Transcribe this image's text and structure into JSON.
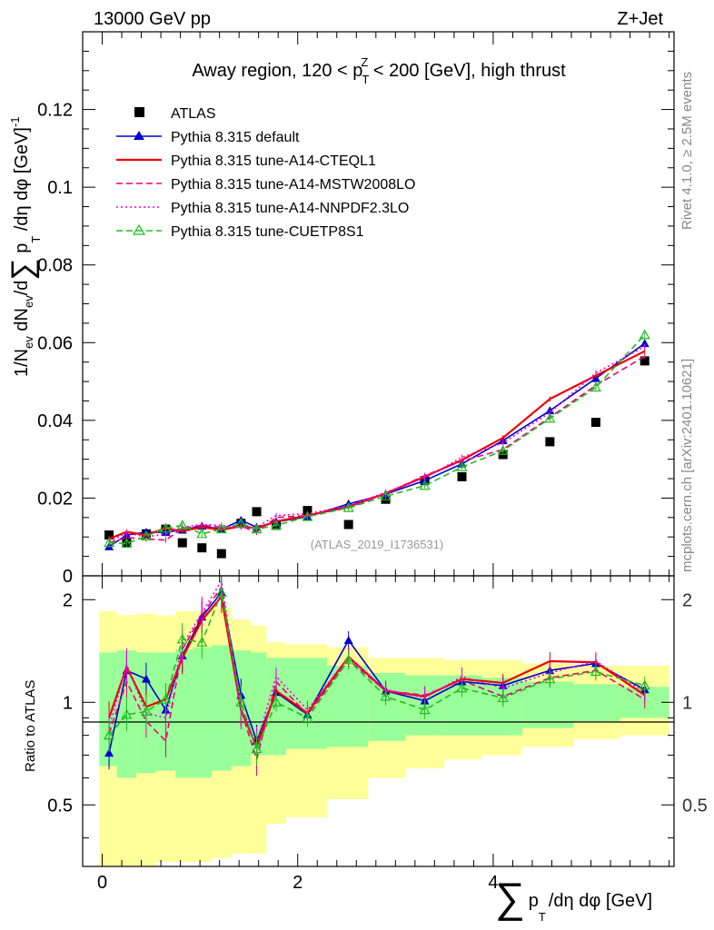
{
  "header": {
    "energy_label": "13000 GeV pp",
    "process_label": "Z+Jet",
    "side_label_rivet": "Rivet 4.1.0, ≥ 2.5M events",
    "side_label_source": "mcplots.cern.ch [arXiv:2401.10621]"
  },
  "chart_data": [
    {
      "type": "line",
      "title": "Away region, 120 < p_T^Z < 200 [GeV], high thrust",
      "title_parts": {
        "pre": "Away region, 120 < p",
        "sub": "T",
        "sup": "Z",
        "post": " < 200 [GeV], high thrust"
      },
      "ylabel": "1/N_ev dN_ev/d∑p_T/dη dφ [GeV]^-1",
      "ylabel_parts": {
        "a": "1/N",
        "a_sub": "ev",
        "b": " dN",
        "b_sub": "ev",
        "c": "/d",
        "sum": "∑",
        "d": " p",
        "d_sub": "T",
        "e": " /dη dφ  [GeV]",
        "e_sup": "-1"
      },
      "xlabel": "∑ p_T /dη dφ [GeV]",
      "xlim": [
        -0.2,
        5.85
      ],
      "ylim": [
        0,
        0.14
      ],
      "y_ticks": [
        0,
        0.02,
        0.04,
        0.06,
        0.08,
        0.1,
        0.12
      ],
      "y_tick_labels": [
        "0",
        "0.02",
        "0.04",
        "0.06",
        "0.08",
        "0.1",
        "0.12"
      ],
      "watermark": "(ATLAS_2019_I1736531)",
      "x": [
        0.07,
        0.25,
        0.45,
        0.65,
        0.82,
        1.02,
        1.22,
        1.42,
        1.58,
        1.78,
        2.1,
        2.52,
        2.9,
        3.3,
        3.68,
        4.1,
        4.58,
        5.05,
        5.55
      ],
      "series": [
        {
          "name": "ATLAS",
          "style": "marker",
          "color": "#000000",
          "values": [
            0.0105,
            0.0085,
            0.0108,
            0.012,
            0.0085,
            0.0072,
            0.0057,
            0.0135,
            0.0165,
            0.013,
            0.0168,
            0.0132,
            0.0197,
            0.0245,
            0.0255,
            0.0312,
            0.0345,
            0.0395,
            0.0553
          ]
        },
        {
          "name": "Pythia 8.315 default",
          "style": "line-triangle",
          "color": "#0000cc",
          "values": [
            0.0075,
            0.0105,
            0.0112,
            0.0112,
            0.0118,
            0.0128,
            0.012,
            0.0143,
            0.0125,
            0.0139,
            0.0152,
            0.0185,
            0.021,
            0.0245,
            0.0288,
            0.0348,
            0.0425,
            0.0508,
            0.0598
          ]
        },
        {
          "name": "Pythia 8.315 tune-A14-CTEQL1",
          "style": "line-solid",
          "color": "#ee0000",
          "values": [
            0.0095,
            0.0113,
            0.0105,
            0.0122,
            0.0115,
            0.0125,
            0.0118,
            0.0128,
            0.0122,
            0.014,
            0.0155,
            0.0178,
            0.0212,
            0.0255,
            0.0298,
            0.0355,
            0.0455,
            0.0515,
            0.0578
          ]
        },
        {
          "name": "Pythia 8.315 tune-A14-MSTW2008LO",
          "style": "line-dashed",
          "color": "#ee0077",
          "values": [
            0.0085,
            0.0098,
            0.0095,
            0.0092,
            0.0122,
            0.013,
            0.0125,
            0.0128,
            0.0112,
            0.015,
            0.0155,
            0.0175,
            0.0212,
            0.0258,
            0.0295,
            0.0325,
            0.0408,
            0.049,
            0.0565
          ]
        },
        {
          "name": "Pythia 8.315 tune-A14-NNPDF2.3LO",
          "style": "line-dotted",
          "color": "#ee00ee",
          "values": [
            0.0088,
            0.011,
            0.01,
            0.0108,
            0.0125,
            0.0132,
            0.013,
            0.0125,
            0.0125,
            0.0155,
            0.016,
            0.018,
            0.0215,
            0.0252,
            0.0305,
            0.0342,
            0.042,
            0.0522,
            0.059
          ]
        },
        {
          "name": "Pythia 8.315 tune-CUETP8S1",
          "style": "line-dashed-open-triangle",
          "color": "#22bb22",
          "values": [
            0.0085,
            0.0083,
            0.0102,
            0.0122,
            0.013,
            0.0108,
            0.012,
            0.0135,
            0.012,
            0.013,
            0.0152,
            0.0175,
            0.0205,
            0.0232,
            0.028,
            0.0322,
            0.0405,
            0.0485,
            0.062
          ]
        }
      ]
    },
    {
      "type": "line",
      "ylabel": "Ratio to ATLAS",
      "ylim": [
        0.33,
        2.35
      ],
      "y_scale": "log",
      "y_ticks": [
        0.5,
        1,
        2
      ],
      "y_tick_labels": [
        "0.5",
        "1",
        "2"
      ],
      "x_ticks": [
        0,
        2,
        4
      ],
      "x_tick_labels": [
        "0",
        "2",
        "4"
      ],
      "reference_line": 1,
      "band_edges": [
        -0.03,
        0.15,
        0.35,
        0.55,
        0.75,
        0.93,
        1.12,
        1.32,
        1.52,
        1.68,
        1.88,
        2.3,
        2.72,
        3.1,
        3.5,
        3.88,
        4.3,
        4.82,
        5.3,
        5.8
      ],
      "band_green": {
        "lo": [
          0.65,
          0.6,
          0.62,
          0.63,
          0.6,
          0.6,
          0.63,
          0.65,
          0.7,
          0.7,
          0.73,
          0.74,
          0.77,
          0.8,
          0.8,
          0.8,
          0.84,
          0.88,
          0.9
        ],
        "hi": [
          1.4,
          1.42,
          1.4,
          1.4,
          1.43,
          1.45,
          1.47,
          1.42,
          1.4,
          1.35,
          1.35,
          1.28,
          1.22,
          1.2,
          1.2,
          1.18,
          1.15,
          1.13,
          1.11
        ]
      },
      "band_yellow": {
        "lo": [
          0.33,
          0.33,
          0.33,
          0.34,
          0.34,
          0.34,
          0.35,
          0.36,
          0.36,
          0.44,
          0.46,
          0.52,
          0.6,
          0.64,
          0.68,
          0.7,
          0.74,
          0.78,
          0.8
        ]
      },
      "band_yellow_hi": [
        1.85,
        1.8,
        1.82,
        1.8,
        1.85,
        1.85,
        1.9,
        1.75,
        1.68,
        1.5,
        1.48,
        1.45,
        1.35,
        1.35,
        1.33,
        1.33,
        1.3,
        1.28,
        1.28
      ],
      "series": [
        {
          "name": "Pythia 8.315 default",
          "color": "#0000cc",
          "values": [
            0.71,
            1.24,
            1.17,
            0.95,
            1.37,
            1.78,
            2.1,
            1.05,
            0.77,
            1.07,
            0.92,
            1.52,
            1.08,
            1.01,
            1.15,
            1.12,
            1.24,
            1.3,
            1.09
          ]
        },
        {
          "name": "Pythia 8.315 tune-A14-CTEQL1",
          "color": "#ee0000",
          "values": [
            0.9,
            1.27,
            0.97,
            1.02,
            1.35,
            1.74,
            2.04,
            0.95,
            0.74,
            1.08,
            0.93,
            1.36,
            1.08,
            1.04,
            1.17,
            1.14,
            1.32,
            1.31,
            1.05
          ]
        },
        {
          "name": "Pythia 8.315 tune-A14-MSTW2008LO",
          "color": "#ee0077",
          "values": [
            0.81,
            1.15,
            0.88,
            0.77,
            1.43,
            1.8,
            2.18,
            0.95,
            0.68,
            1.15,
            0.92,
            1.33,
            1.08,
            1.05,
            1.16,
            1.04,
            1.18,
            1.24,
            1.02
          ]
        },
        {
          "name": "Pythia 8.315 tune-A14-NNPDF2.3LO",
          "color": "#ee00ee",
          "values": [
            0.84,
            1.29,
            0.93,
            0.9,
            1.47,
            1.83,
            2.27,
            0.93,
            0.76,
            1.19,
            0.95,
            1.36,
            1.09,
            1.03,
            1.19,
            1.1,
            1.22,
            1.32,
            1.07
          ]
        },
        {
          "name": "Pythia 8.315 tune-CUETP8S1",
          "color": "#22bb22",
          "values": [
            0.8,
            0.92,
            0.94,
            1.02,
            1.53,
            1.5,
            2.1,
            1.0,
            0.73,
            1.0,
            0.9,
            1.33,
            1.04,
            0.95,
            1.1,
            1.03,
            1.17,
            1.23,
            1.12
          ]
        }
      ]
    }
  ]
}
